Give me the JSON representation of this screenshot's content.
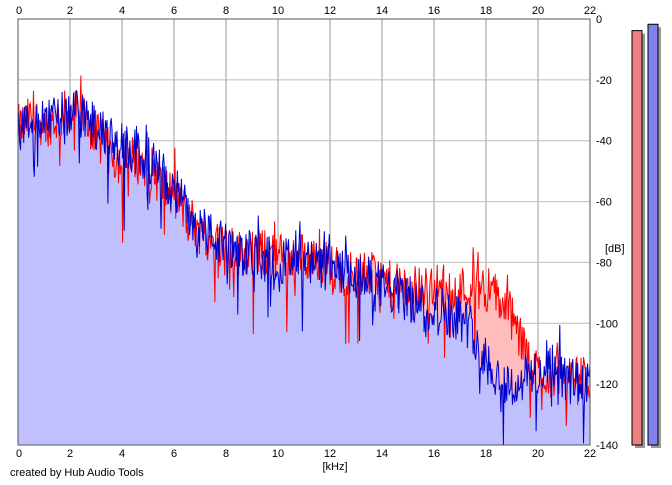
{
  "footer": "created by Hub Audio Tools",
  "chart_data": {
    "type": "area",
    "xlabel": "[kHz]",
    "ylabel": "[dB]",
    "xlim": [
      0,
      22
    ],
    "ylim": [
      -140,
      0
    ],
    "x_ticks": [
      0,
      2,
      4,
      6,
      8,
      10,
      12,
      14,
      16,
      18,
      20,
      22
    ],
    "y_ticks": [
      0,
      -20,
      -40,
      -60,
      -80,
      -100,
      -120,
      -140
    ],
    "grid": true,
    "series": [
      {
        "color": "#ff0000",
        "fill": "#ffbcbc",
        "x": [
          0,
          0.5,
          1,
          1.5,
          2,
          2.5,
          3,
          3.5,
          4,
          4.5,
          5,
          5.5,
          6,
          6.5,
          7,
          7.5,
          8,
          8.5,
          9,
          9.5,
          10,
          10.5,
          11,
          11.5,
          12,
          12.5,
          13,
          13.5,
          14,
          14.5,
          15,
          15.5,
          16,
          16.5,
          17,
          17.5,
          18,
          18.5,
          19,
          19.5,
          20,
          20.5,
          21,
          21.5,
          22
        ],
        "y": [
          -36,
          -33,
          -34,
          -33,
          -30,
          -32,
          -38,
          -44,
          -47,
          -46,
          -48,
          -54,
          -59,
          -64,
          -70,
          -73,
          -75,
          -77,
          -76,
          -77,
          -78,
          -78,
          -78,
          -79,
          -81,
          -83,
          -84,
          -84,
          -86,
          -88,
          -89,
          -88,
          -88,
          -88,
          -89,
          -88,
          -88,
          -92,
          -98,
          -110,
          -116,
          -117,
          -118,
          -119,
          -118
        ]
      },
      {
        "color": "#0000cc",
        "fill": "#c0c0ff",
        "x": [
          0,
          0.5,
          1,
          1.5,
          2,
          2.5,
          3,
          3.5,
          4,
          4.5,
          5,
          5.5,
          6,
          6.5,
          7,
          7.5,
          8,
          8.5,
          9,
          9.5,
          10,
          10.5,
          11,
          11.5,
          12,
          12.5,
          13,
          13.5,
          14,
          14.5,
          15,
          15.5,
          16,
          16.5,
          17,
          17.5,
          18,
          18.5,
          19,
          19.5,
          20,
          20.5,
          21,
          21.5,
          22
        ],
        "y": [
          -36,
          -33,
          -34,
          -33,
          -30,
          -32,
          -36,
          -40,
          -42,
          -44,
          -46,
          -51,
          -56,
          -62,
          -68,
          -72,
          -75,
          -78,
          -77,
          -78,
          -79,
          -80,
          -80,
          -81,
          -82,
          -84,
          -85,
          -86,
          -88,
          -90,
          -92,
          -94,
          -95,
          -96,
          -98,
          -102,
          -112,
          -118,
          -121,
          -118,
          -116,
          -117,
          -118,
          -120,
          -121
        ]
      }
    ],
    "level_meters": [
      {
        "color": "#f08080",
        "level": 0.975
      },
      {
        "color": "#8080f0",
        "level": 0.99
      }
    ]
  }
}
